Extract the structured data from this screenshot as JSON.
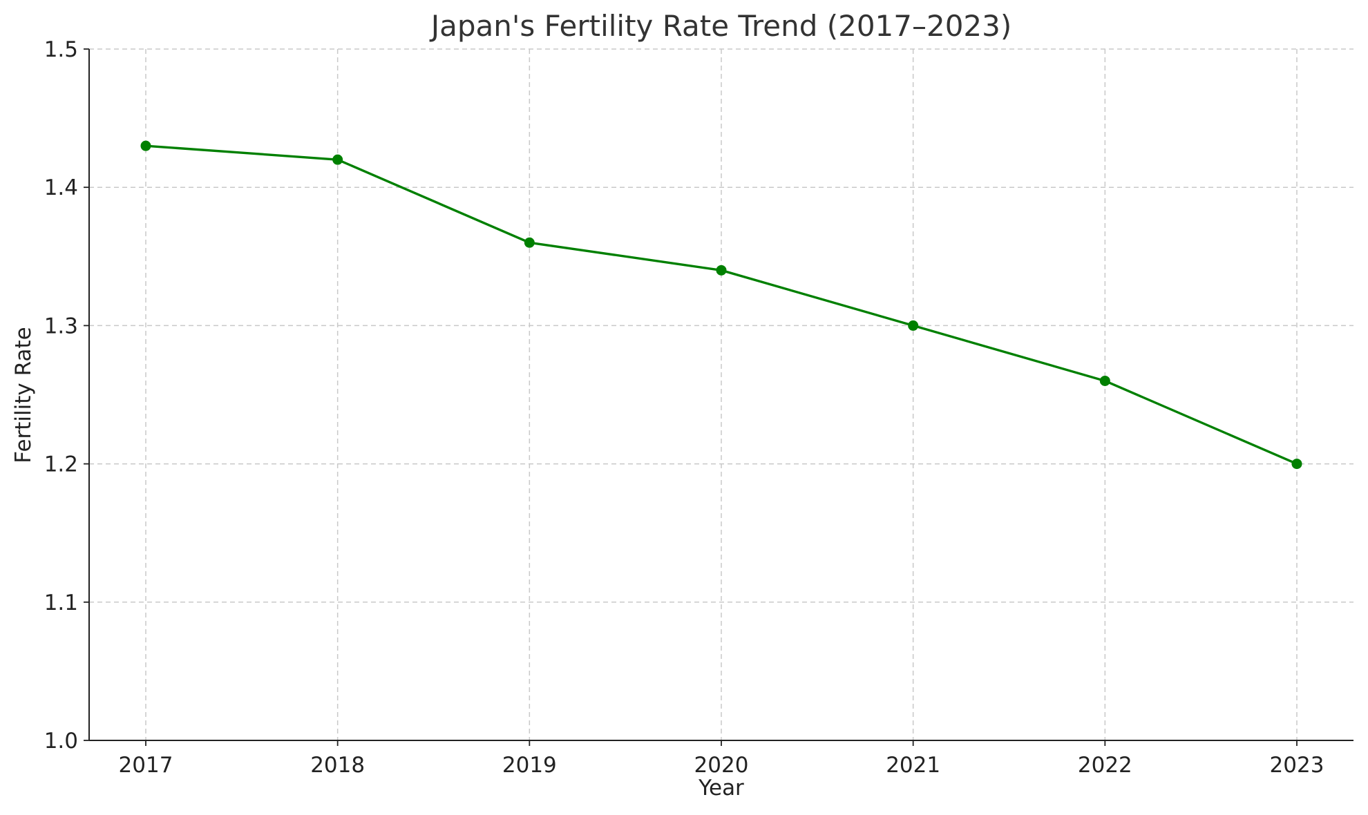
{
  "chart_data": {
    "type": "line",
    "title": "Japan's Fertility Rate Trend (2017–2023)",
    "xlabel": "Year",
    "ylabel": "Fertility Rate",
    "x": [
      "2017",
      "2018",
      "2019",
      "2020",
      "2021",
      "2022",
      "2023"
    ],
    "series": [
      {
        "values": [
          1.43,
          1.42,
          1.36,
          1.34,
          1.3,
          1.26,
          1.2
        ],
        "color": "#008000",
        "marker": "circle"
      }
    ],
    "ylim": [
      1.0,
      1.5
    ],
    "yticks": [
      "1.0",
      "1.1",
      "1.2",
      "1.3",
      "1.4",
      "1.5"
    ],
    "grid": true,
    "grid_style": "dashed",
    "legend": false
  }
}
